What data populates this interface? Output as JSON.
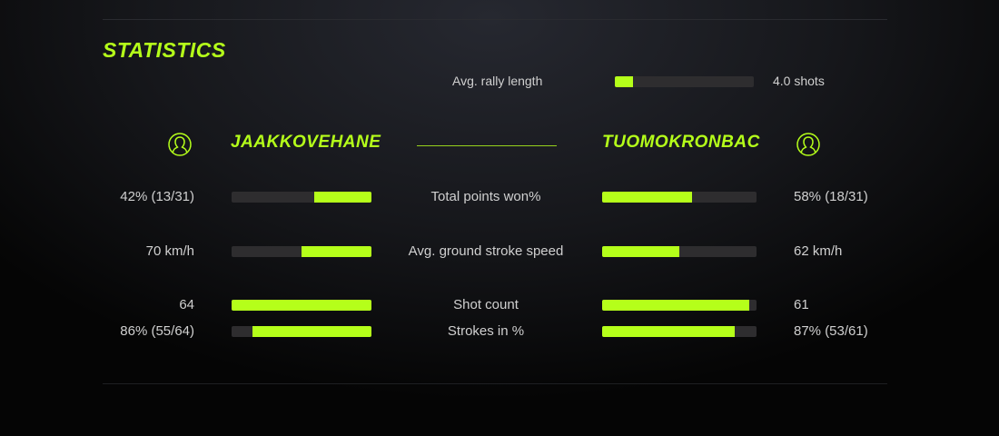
{
  "title": "STATISTICS",
  "accent_color": "#b5ff1a",
  "rally": {
    "label": "Avg. rally length",
    "value": "4.0 shots",
    "fill": 0.13
  },
  "players": {
    "left": {
      "name": "JAAKKOVEHANE",
      "icon": "user-icon"
    },
    "right": {
      "name": "TUOMOKRONBAC",
      "icon": "user-icon"
    }
  },
  "stats": [
    {
      "label": "Total points won%",
      "left": "42% (13/31)",
      "right": "58% (18/31)",
      "left_fill": 0.41,
      "right_fill": 0.58
    },
    {
      "label": "Avg. ground stroke speed",
      "left": "70 km/h",
      "right": "62 km/h",
      "left_fill": 0.5,
      "right_fill": 0.5
    },
    {
      "label": "Shot count",
      "left": "64",
      "right": "61",
      "left_fill": 1.0,
      "right_fill": 0.95
    },
    {
      "label": "Strokes in %",
      "left": "86% (55/64)",
      "right": "87% (53/61)",
      "left_fill": 0.85,
      "right_fill": 0.86
    }
  ]
}
